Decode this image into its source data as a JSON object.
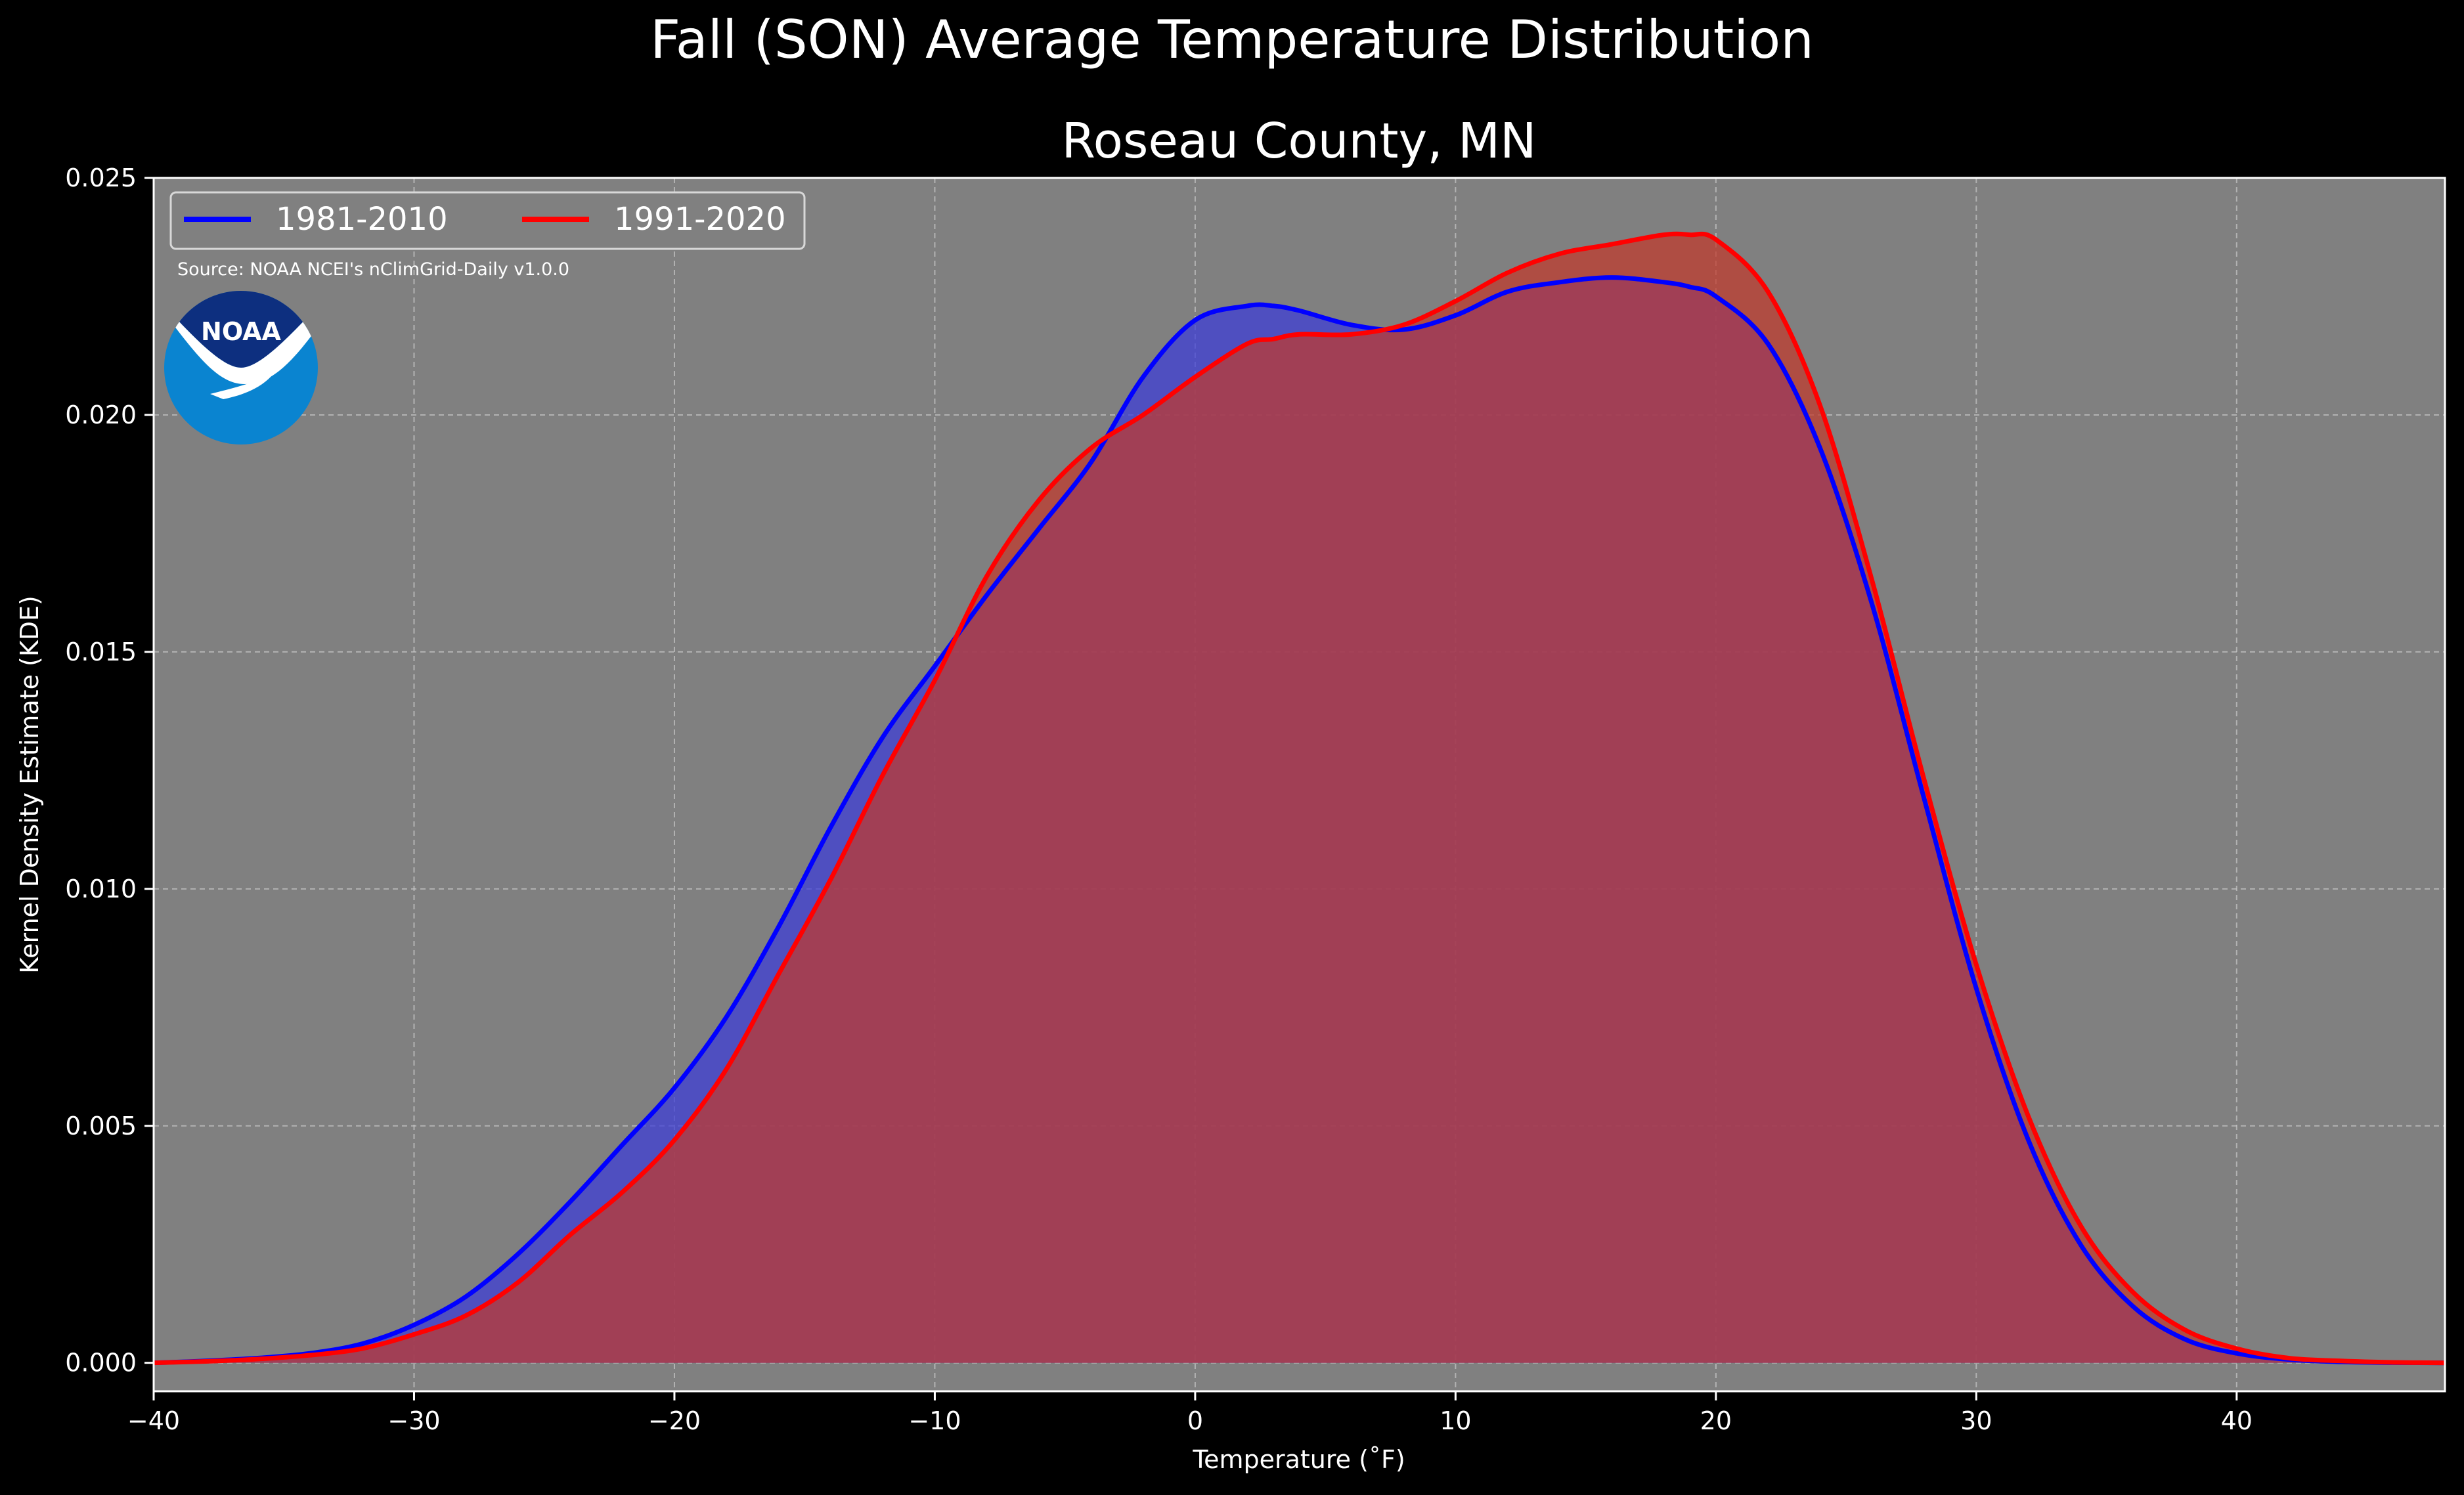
{
  "chart_data": {
    "type": "area",
    "suptitle": "Fall (SON) Average Temperature Distribution",
    "title": "Roseau County, MN",
    "xlabel": "Temperature ($^\\circ$F)",
    "xlabel_display": "Temperature (˚F)",
    "ylabel": "Kernel Density Estimate (KDE)",
    "xlim": [
      -40,
      48
    ],
    "ylim": [
      -0.0006,
      0.025
    ],
    "xticks": [
      -40,
      -30,
      -20,
      -10,
      0,
      10,
      20,
      30,
      40
    ],
    "xtick_labels": [
      "−40",
      "−30",
      "−20",
      "−10",
      "0",
      "10",
      "20",
      "30",
      "40"
    ],
    "yticks": [
      0.0,
      0.005,
      0.01,
      0.015,
      0.02,
      0.025
    ],
    "ytick_labels": [
      "0.000",
      "0.005",
      "0.010",
      "0.015",
      "0.020",
      "0.025"
    ],
    "grid": true,
    "legend": {
      "placement": "top-left",
      "ncol": 2
    },
    "source_note": "Source: NOAA NCEI's nClimGrid-Daily v1.0.0",
    "logo_text": "NOAA",
    "x": [
      -40,
      -38,
      -36,
      -34,
      -32,
      -30,
      -28,
      -26,
      -24,
      -22,
      -20,
      -18,
      -16,
      -14,
      -12,
      -10,
      -8,
      -6,
      -4,
      -2,
      0,
      2,
      3,
      4,
      6,
      8,
      10,
      12,
      14,
      16,
      18,
      19,
      20,
      22,
      24,
      26,
      28,
      30,
      32,
      34,
      36,
      38,
      40,
      42,
      44,
      46,
      48
    ],
    "series": [
      {
        "name": "1981-2010",
        "color": "#0000ff",
        "fill": "#3b3bd8",
        "values": [
          0.0,
          4e-05,
          0.0001,
          0.0002,
          0.0004,
          0.0008,
          0.0014,
          0.0023,
          0.0034,
          0.0046,
          0.0058,
          0.0073,
          0.0092,
          0.0113,
          0.0132,
          0.0147,
          0.0162,
          0.0176,
          0.019,
          0.0208,
          0.022,
          0.0223,
          0.0223,
          0.0222,
          0.0219,
          0.0218,
          0.0221,
          0.0226,
          0.0228,
          0.0229,
          0.0228,
          0.0227,
          0.0225,
          0.0215,
          0.0193,
          0.016,
          0.0119,
          0.0079,
          0.0047,
          0.0025,
          0.0012,
          0.0005,
          0.0002,
          7e-05,
          2e-05,
          5e-06,
          0.0
        ]
      },
      {
        "name": "1991-2020",
        "color": "#ff0000",
        "fill": "#c0392b",
        "values": [
          0.0,
          3e-05,
          8e-05,
          0.00016,
          0.0003,
          0.0006,
          0.001,
          0.0017,
          0.0027,
          0.0036,
          0.0047,
          0.0062,
          0.0082,
          0.0102,
          0.0124,
          0.0144,
          0.0166,
          0.0182,
          0.0193,
          0.02,
          0.0208,
          0.0215,
          0.0216,
          0.0217,
          0.0217,
          0.0219,
          0.0224,
          0.023,
          0.0234,
          0.0236,
          0.0238,
          0.0238,
          0.0237,
          0.0226,
          0.0202,
          0.0165,
          0.0123,
          0.0084,
          0.0052,
          0.0029,
          0.0015,
          0.0007,
          0.0003,
          0.0001,
          4e-05,
          1e-05,
          0.0
        ]
      }
    ]
  }
}
